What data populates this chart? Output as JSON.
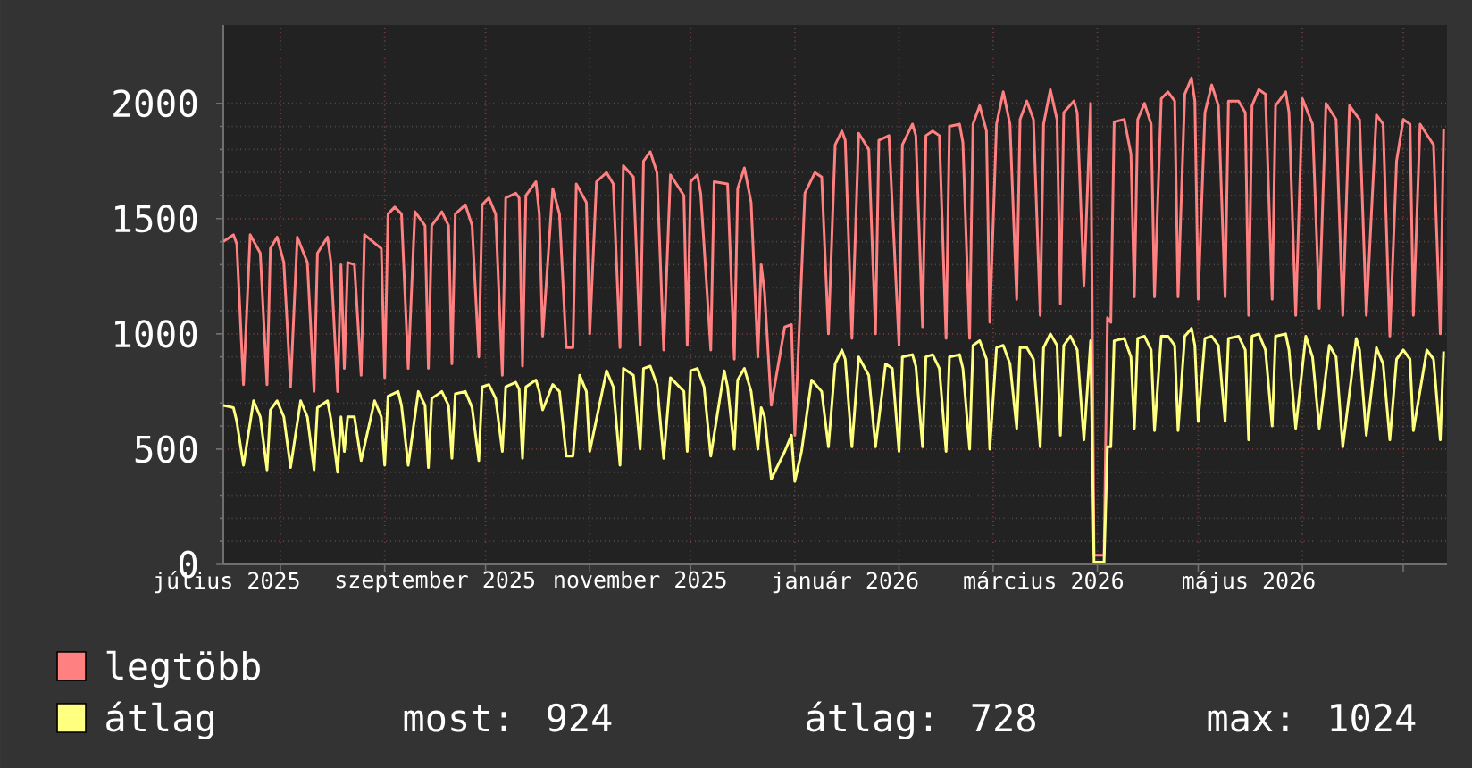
{
  "chart_data": {
    "type": "line",
    "xlim": [
      "2025-07-15",
      "2026-07-14"
    ],
    "xticks": [
      {
        "value": "2025-07-16",
        "label": "július 2025"
      },
      {
        "value": "2025-08-01",
        "label": null
      },
      {
        "value": "2025-09-01",
        "label": null
      },
      {
        "value": "2025-09-16",
        "label": "szeptember 2025"
      },
      {
        "value": "2025-10-01",
        "label": null
      },
      {
        "value": "2025-11-01",
        "label": null
      },
      {
        "value": "2025-11-16",
        "label": "november 2025"
      },
      {
        "value": "2025-12-01",
        "label": null
      },
      {
        "value": "2026-01-01",
        "label": null
      },
      {
        "value": "2026-01-16",
        "label": "január 2026"
      },
      {
        "value": "2026-02-01",
        "label": null
      },
      {
        "value": "2026-03-01",
        "label": null
      },
      {
        "value": "2026-03-16",
        "label": "március 2026"
      },
      {
        "value": "2026-04-01",
        "label": null
      },
      {
        "value": "2026-05-01",
        "label": null
      },
      {
        "value": "2026-05-16",
        "label": "május 2026"
      },
      {
        "value": "2026-06-01",
        "label": null
      },
      {
        "value": "2026-07-01",
        "label": null
      }
    ],
    "ylim": [
      0,
      2340
    ],
    "yticks": [
      0,
      500,
      1000,
      1500,
      2000
    ],
    "grid": true,
    "legend": "bottom left",
    "annotations": [
      "most: 924",
      "átlag: 728",
      "max: 1024"
    ],
    "series": [
      {
        "name": "legtöbb",
        "color": "#ff8080",
        "x": [
          "2025-07-15",
          "2025-07-18",
          "2025-07-19",
          "2025-07-21",
          "2025-07-23",
          "2025-07-26",
          "2025-07-28",
          "2025-07-29",
          "2025-07-31",
          "2025-08-02",
          "2025-08-04",
          "2025-08-06",
          "2025-08-09",
          "2025-08-11",
          "2025-08-12",
          "2025-08-15",
          "2025-08-16",
          "2025-08-18",
          "2025-08-19",
          "2025-08-20",
          "2025-08-21",
          "2025-08-23",
          "2025-08-25",
          "2025-08-26",
          "2025-08-31",
          "2025-09-01",
          "2025-09-02",
          "2025-09-04",
          "2025-09-06",
          "2025-09-08",
          "2025-09-10",
          "2025-09-13",
          "2025-09-14",
          "2025-09-15",
          "2025-09-18",
          "2025-09-20",
          "2025-09-21",
          "2025-09-22",
          "2025-09-25",
          "2025-09-27",
          "2025-09-29",
          "2025-09-30",
          "2025-10-02",
          "2025-10-04",
          "2025-10-06",
          "2025-10-07",
          "2025-10-10",
          "2025-10-11",
          "2025-10-12",
          "2025-10-13",
          "2025-10-16",
          "2025-10-17",
          "2025-10-18",
          "2025-10-21",
          "2025-10-23",
          "2025-10-25",
          "2025-10-27",
          "2025-10-28",
          "2025-10-31",
          "2025-11-01",
          "2025-11-03",
          "2025-11-06",
          "2025-11-08",
          "2025-11-10",
          "2025-11-11",
          "2025-11-14",
          "2025-11-16",
          "2025-11-17",
          "2025-11-19",
          "2025-11-21",
          "2025-11-23",
          "2025-11-25",
          "2025-11-29",
          "2025-11-30",
          "2025-12-01",
          "2025-12-03",
          "2025-12-04",
          "2025-12-07",
          "2025-12-08",
          "2025-12-12",
          "2025-12-14",
          "2025-12-15",
          "2025-12-17",
          "2025-12-19",
          "2025-12-21",
          "2025-12-22",
          "2025-12-23",
          "2025-12-25",
          "2025-12-27",
          "2025-12-29",
          "2025-12-31",
          "2026-01-01",
          "2026-01-04",
          "2026-01-07",
          "2026-01-09",
          "2026-01-11",
          "2026-01-13",
          "2026-01-15",
          "2026-01-16",
          "2026-01-18",
          "2026-01-20",
          "2026-01-23",
          "2026-01-25",
          "2026-01-26",
          "2026-01-29",
          "2026-02-01",
          "2026-02-02",
          "2026-02-05",
          "2026-02-06",
          "2026-02-08",
          "2026-02-09",
          "2026-02-11",
          "2026-02-13",
          "2026-02-15",
          "2026-02-16",
          "2026-02-19",
          "2026-02-20",
          "2026-02-22",
          "2026-02-23",
          "2026-02-25",
          "2026-02-27",
          "2026-02-28",
          "2026-03-02",
          "2026-03-04",
          "2026-03-06",
          "2026-03-08",
          "2026-03-09",
          "2026-03-11",
          "2026-03-13",
          "2026-03-15",
          "2026-03-16",
          "2026-03-18",
          "2026-03-20",
          "2026-03-21",
          "2026-03-22",
          "2026-03-25",
          "2026-03-26",
          "2026-03-28",
          "2026-03-30",
          "2026-03-31",
          "2026-04-03",
          "2026-04-04",
          "2026-04-05",
          "2026-04-06",
          "2026-04-09",
          "2026-04-11",
          "2026-04-12",
          "2026-04-13",
          "2026-04-15",
          "2026-04-17",
          "2026-04-18",
          "2026-04-20",
          "2026-04-22",
          "2026-04-24",
          "2026-04-25",
          "2026-04-27",
          "2026-04-29",
          "2026-04-30",
          "2026-05-01",
          "2026-05-03",
          "2026-05-05",
          "2026-05-07",
          "2026-05-09",
          "2026-05-10",
          "2026-05-13",
          "2026-05-15",
          "2026-05-16",
          "2026-05-17",
          "2026-05-19",
          "2026-05-21",
          "2026-05-23",
          "2026-05-24",
          "2026-05-27",
          "2026-05-28",
          "2026-05-30",
          "2026-06-01",
          "2026-06-04",
          "2026-06-06",
          "2026-06-08",
          "2026-06-11",
          "2026-06-13",
          "2026-06-15",
          "2026-06-18",
          "2026-06-20",
          "2026-06-23",
          "2026-06-25",
          "2026-06-27",
          "2026-06-29",
          "2026-07-01",
          "2026-07-03",
          "2026-07-04",
          "2026-07-06",
          "2026-07-10",
          "2026-07-12",
          "2026-07-13"
        ],
        "values": [
          1400,
          1430,
          1390,
          780,
          1430,
          1350,
          780,
          1370,
          1420,
          1310,
          770,
          1420,
          1310,
          750,
          1350,
          1420,
          1310,
          750,
          1300,
          850,
          1310,
          1300,
          820,
          1430,
          1370,
          810,
          1520,
          1550,
          1520,
          850,
          1530,
          1470,
          850,
          1470,
          1530,
          1470,
          870,
          1520,
          1560,
          1470,
          900,
          1560,
          1590,
          1520,
          820,
          1590,
          1610,
          1590,
          860,
          1600,
          1660,
          1520,
          990,
          1630,
          1520,
          940,
          940,
          1650,
          1570,
          1000,
          1660,
          1700,
          1650,
          940,
          1730,
          1680,
          950,
          1750,
          1790,
          1700,
          930,
          1690,
          1600,
          950,
          1660,
          1690,
          1610,
          930,
          1660,
          1650,
          890,
          1630,
          1720,
          1570,
          900,
          1300,
          1180,
          690,
          860,
          1030,
          1040,
          560,
          1610,
          1700,
          1680,
          1000,
          1820,
          1880,
          1840,
          980,
          1870,
          1800,
          1000,
          1840,
          1860,
          950,
          1820,
          1910,
          1860,
          1030,
          1860,
          1880,
          1860,
          980,
          1900,
          1910,
          1830,
          980,
          1910,
          1990,
          1880,
          1050,
          1910,
          2050,
          1910,
          1150,
          1930,
          2010,
          1930,
          1080,
          1910,
          2060,
          1930,
          1130,
          1960,
          2010,
          1960,
          1210,
          2000,
          40,
          40,
          1070,
          1050,
          1920,
          1930,
          1780,
          1160,
          1930,
          2000,
          1910,
          1160,
          2020,
          2050,
          2010,
          1160,
          2040,
          2110,
          2010,
          1150,
          1960,
          2080,
          1990,
          1160,
          2010,
          2010,
          1960,
          1080,
          1990,
          2060,
          2040,
          1150,
          1990,
          2050,
          1960,
          1080,
          2020,
          1910,
          1110,
          2000,
          1930,
          1080,
          1990,
          1930,
          1080,
          1950,
          1910,
          990,
          1750,
          1930,
          1910,
          1080,
          1910,
          1820,
          1000,
          1890
        ]
      },
      {
        "name": "átlag",
        "color": "#ffff80",
        "x": [
          "2025-07-15",
          "2025-07-18",
          "2025-07-19",
          "2025-07-21",
          "2025-07-24",
          "2025-07-26",
          "2025-07-28",
          "2025-07-29",
          "2025-07-31",
          "2025-08-02",
          "2025-08-04",
          "2025-08-07",
          "2025-08-09",
          "2025-08-11",
          "2025-08-12",
          "2025-08-15",
          "2025-08-16",
          "2025-08-18",
          "2025-08-19",
          "2025-08-20",
          "2025-08-21",
          "2025-08-23",
          "2025-08-25",
          "2025-08-29",
          "2025-08-31",
          "2025-09-01",
          "2025-09-02",
          "2025-09-05",
          "2025-09-06",
          "2025-09-08",
          "2025-09-11",
          "2025-09-13",
          "2025-09-14",
          "2025-09-15",
          "2025-09-18",
          "2025-09-20",
          "2025-09-21",
          "2025-09-22",
          "2025-09-25",
          "2025-09-27",
          "2025-09-29",
          "2025-09-30",
          "2025-10-02",
          "2025-10-04",
          "2025-10-06",
          "2025-10-07",
          "2025-10-10",
          "2025-10-11",
          "2025-10-12",
          "2025-10-13",
          "2025-10-16",
          "2025-10-17",
          "2025-10-18",
          "2025-10-21",
          "2025-10-23",
          "2025-10-25",
          "2025-10-27",
          "2025-10-29",
          "2025-10-31",
          "2025-11-01",
          "2025-11-06",
          "2025-11-08",
          "2025-11-10",
          "2025-11-11",
          "2025-11-14",
          "2025-11-16",
          "2025-11-17",
          "2025-11-19",
          "2025-11-21",
          "2025-11-23",
          "2025-11-25",
          "2025-11-29",
          "2025-11-30",
          "2025-12-01",
          "2025-12-03",
          "2025-12-05",
          "2025-12-07",
          "2025-12-11",
          "2025-12-12",
          "2025-12-14",
          "2025-12-15",
          "2025-12-17",
          "2025-12-19",
          "2025-12-21",
          "2025-12-22",
          "2025-12-23",
          "2025-12-25",
          "2025-12-27",
          "2025-12-29",
          "2025-12-31",
          "2026-01-01",
          "2026-01-03",
          "2026-01-06",
          "2026-01-09",
          "2026-01-11",
          "2026-01-13",
          "2026-01-15",
          "2026-01-16",
          "2026-01-18",
          "2026-01-20",
          "2026-01-23",
          "2026-01-25",
          "2026-01-28",
          "2026-01-30",
          "2026-02-01",
          "2026-02-02",
          "2026-02-05",
          "2026-02-06",
          "2026-02-08",
          "2026-02-09",
          "2026-02-11",
          "2026-02-13",
          "2026-02-15",
          "2026-02-16",
          "2026-02-19",
          "2026-02-20",
          "2026-02-22",
          "2026-02-23",
          "2026-02-25",
          "2026-02-27",
          "2026-02-28",
          "2026-03-02",
          "2026-03-04",
          "2026-03-06",
          "2026-03-08",
          "2026-03-09",
          "2026-03-11",
          "2026-03-13",
          "2026-03-15",
          "2026-03-16",
          "2026-03-18",
          "2026-03-20",
          "2026-03-21",
          "2026-03-22",
          "2026-03-24",
          "2026-03-26",
          "2026-03-28",
          "2026-03-30",
          "2026-03-31",
          "2026-04-03",
          "2026-04-04",
          "2026-04-05",
          "2026-04-06",
          "2026-04-09",
          "2026-04-11",
          "2026-04-12",
          "2026-04-13",
          "2026-04-15",
          "2026-04-17",
          "2026-04-18",
          "2026-04-20",
          "2026-04-22",
          "2026-04-24",
          "2026-04-25",
          "2026-04-27",
          "2026-04-29",
          "2026-04-30",
          "2026-05-01",
          "2026-05-03",
          "2026-05-05",
          "2026-05-07",
          "2026-05-09",
          "2026-05-10",
          "2026-05-13",
          "2026-05-15",
          "2026-05-16",
          "2026-05-17",
          "2026-05-19",
          "2026-05-21",
          "2026-05-23",
          "2026-05-24",
          "2026-05-27",
          "2026-05-28",
          "2026-05-30",
          "2026-06-02",
          "2026-06-04",
          "2026-06-06",
          "2026-06-09",
          "2026-06-11",
          "2026-06-13",
          "2026-06-17",
          "2026-06-18",
          "2026-06-20",
          "2026-06-23",
          "2026-06-25",
          "2026-06-27",
          "2026-06-29",
          "2026-07-01",
          "2026-07-03",
          "2026-07-04",
          "2026-07-08",
          "2026-07-10",
          "2026-07-12",
          "2026-07-13"
        ],
        "values": [
          690,
          680,
          620,
          430,
          710,
          640,
          410,
          670,
          710,
          640,
          420,
          710,
          640,
          410,
          680,
          710,
          630,
          400,
          640,
          490,
          640,
          640,
          450,
          710,
          640,
          430,
          730,
          750,
          690,
          430,
          750,
          690,
          420,
          720,
          750,
          690,
          460,
          740,
          750,
          680,
          450,
          770,
          780,
          720,
          490,
          770,
          790,
          760,
          460,
          770,
          800,
          750,
          670,
          780,
          750,
          470,
          470,
          820,
          750,
          490,
          840,
          770,
          430,
          850,
          820,
          500,
          850,
          860,
          780,
          460,
          810,
          750,
          490,
          840,
          850,
          770,
          470,
          840,
          770,
          500,
          800,
          850,
          750,
          500,
          680,
          640,
          370,
          430,
          490,
          560,
          360,
          490,
          800,
          750,
          510,
          870,
          930,
          890,
          510,
          900,
          820,
          510,
          870,
          850,
          490,
          900,
          910,
          860,
          510,
          900,
          910,
          850,
          490,
          900,
          910,
          850,
          500,
          950,
          970,
          890,
          500,
          940,
          950,
          870,
          590,
          940,
          940,
          890,
          510,
          940,
          1000,
          950,
          560,
          950,
          990,
          930,
          540,
          970,
          10,
          10,
          510,
          510,
          970,
          980,
          900,
          590,
          980,
          990,
          930,
          580,
          990,
          990,
          950,
          580,
          990,
          1024,
          950,
          620,
          980,
          990,
          950,
          620,
          980,
          990,
          930,
          540,
          990,
          1000,
          930,
          600,
          990,
          1000,
          930,
          590,
          990,
          900,
          590,
          950,
          900,
          510,
          980,
          930,
          560,
          940,
          870,
          540,
          890,
          930,
          890,
          580,
          930,
          890,
          540,
          924
        ]
      }
    ]
  }
}
